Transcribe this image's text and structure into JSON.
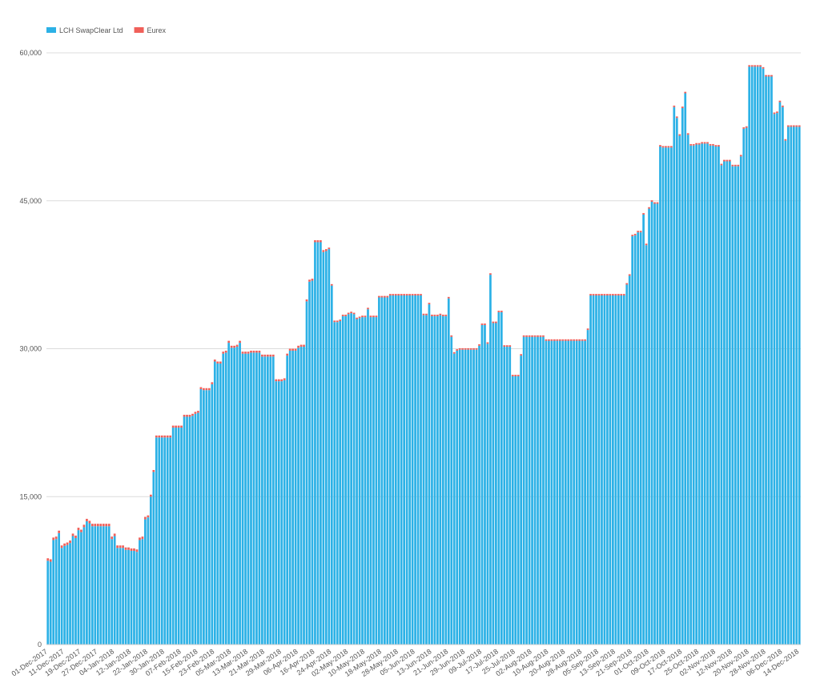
{
  "chart_data": {
    "type": "stacked-bar",
    "legend": "top-left",
    "grid": true,
    "ylim": [
      0,
      60000
    ],
    "yticks": [
      0,
      {
        "value": 15000,
        "label": "15,000"
      },
      {
        "value": 30000,
        "label": "30,000"
      },
      {
        "value": 45000,
        "label": "45,000"
      },
      {
        "value": 60000,
        "label": "60,000"
      }
    ],
    "categories": [
      "01-Dec-2017",
      null,
      null,
      null,
      null,
      null,
      "11-Dec-2017",
      null,
      null,
      null,
      null,
      null,
      "19-Dec-2017",
      null,
      null,
      null,
      null,
      null,
      "27-Dec-2017",
      null,
      null,
      null,
      null,
      null,
      "04-Jan-2018",
      null,
      null,
      null,
      null,
      null,
      "12-Jan-2018",
      null,
      null,
      null,
      null,
      null,
      "22-Jan-2018",
      null,
      null,
      null,
      null,
      null,
      "30-Jan-2018",
      null,
      null,
      null,
      null,
      null,
      "07-Feb-2018",
      null,
      null,
      null,
      null,
      null,
      "15-Feb-2018",
      null,
      null,
      null,
      null,
      null,
      "23-Feb-2018",
      null,
      null,
      null,
      null,
      null,
      "05-Mar-2018",
      null,
      null,
      null,
      null,
      null,
      "13-Mar-2018",
      null,
      null,
      null,
      null,
      null,
      "21-Mar-2018",
      null,
      null,
      null,
      null,
      null,
      "29-Mar-2018",
      null,
      null,
      null,
      null,
      null,
      "06-Apr-2018",
      null,
      null,
      null,
      null,
      null,
      "16-Apr-2018",
      null,
      null,
      null,
      null,
      null,
      "24-Apr-2018",
      null,
      null,
      null,
      null,
      null,
      "02-May-2018",
      null,
      null,
      null,
      null,
      null,
      "10-May-2018",
      null,
      null,
      null,
      null,
      null,
      "18-May-2018",
      null,
      null,
      null,
      null,
      null,
      "28-May-2018",
      null,
      null,
      null,
      null,
      null,
      "05-Jun-2018",
      null,
      null,
      null,
      null,
      null,
      "13-Jun-2018",
      null,
      null,
      null,
      null,
      null,
      "21-Jun-2018",
      null,
      null,
      null,
      null,
      null,
      "29-Jun-2018",
      null,
      null,
      null,
      null,
      null,
      "09-Jul-2018",
      null,
      null,
      null,
      null,
      null,
      "17-Jul-2018",
      null,
      null,
      null,
      null,
      null,
      "25-Jul-2018",
      null,
      null,
      null,
      null,
      null,
      "02-Aug-2018",
      null,
      null,
      null,
      null,
      null,
      "10-Aug-2018",
      null,
      null,
      null,
      null,
      null,
      "20-Aug-2018",
      null,
      null,
      null,
      null,
      null,
      "28-Aug-2018",
      null,
      null,
      null,
      null,
      null,
      "05-Sep-2018",
      null,
      null,
      null,
      null,
      null,
      "13-Sep-2018",
      null,
      null,
      null,
      null,
      null,
      "21-Sep-2018",
      null,
      null,
      null,
      null,
      null,
      "01-Oct-2018",
      null,
      null,
      null,
      null,
      null,
      "09-Oct-2018",
      null,
      null,
      null,
      null,
      null,
      "17-Oct-2018",
      null,
      null,
      null,
      null,
      null,
      "25-Oct-2018",
      null,
      null,
      null,
      null,
      null,
      "02-Nov-2018",
      null,
      null,
      null,
      null,
      null,
      "12-Nov-2018",
      null,
      null,
      null,
      null,
      null,
      "20-Nov-2018",
      null,
      null,
      null,
      null,
      null,
      "28-Nov-2018",
      null,
      null,
      null,
      null,
      null,
      "06-Dec-2018",
      null,
      null,
      null,
      null,
      null,
      "14-Dec-2018"
    ],
    "series": [
      {
        "name": "LCH SwapClear Ltd",
        "color": "#2cb1e6",
        "values": [
          8500,
          8400,
          10600,
          10700,
          11300,
          9800,
          10000,
          10100,
          10300,
          11000,
          10800,
          11600,
          11400,
          11900,
          12500,
          12300,
          12000,
          12000,
          12000,
          12000,
          12000,
          12000,
          12000,
          10700,
          11000,
          9800,
          9800,
          9800,
          9600,
          9600,
          9500,
          9500,
          9400,
          10600,
          10700,
          12700,
          12900,
          15000,
          17500,
          21000,
          21000,
          21000,
          21000,
          21000,
          21000,
          22000,
          22000,
          22000,
          22000,
          23100,
          23100,
          23100,
          23200,
          23400,
          23500,
          25900,
          25800,
          25800,
          25800,
          26400,
          28700,
          28500,
          28500,
          29500,
          29600,
          30600,
          30100,
          30100,
          30200,
          30600,
          29500,
          29500,
          29500,
          29600,
          29600,
          29600,
          29600,
          29200,
          29200,
          29200,
          29200,
          29200,
          26700,
          26700,
          26700,
          26800,
          29300,
          29800,
          29800,
          29800,
          30100,
          30200,
          30200,
          34800,
          36800,
          36900,
          40800,
          40800,
          40800,
          39800,
          39900,
          40100,
          36400,
          32700,
          32700,
          32800,
          33300,
          33300,
          33500,
          33600,
          33500,
          33000,
          33100,
          33200,
          33200,
          34000,
          33200,
          33200,
          33200,
          35200,
          35200,
          35200,
          35200,
          35400,
          35400,
          35400,
          35400,
          35400,
          35400,
          35400,
          35400,
          35400,
          35400,
          35400,
          35400,
          33400,
          33400,
          34500,
          33300,
          33300,
          33300,
          33400,
          33300,
          33300,
          35100,
          31200,
          29500,
          29800,
          29900,
          29900,
          29900,
          29900,
          29900,
          29900,
          29900,
          30300,
          32400,
          32400,
          30500,
          37500,
          32600,
          32600,
          33700,
          33700,
          30200,
          30200,
          30200,
          27200,
          27200,
          27200,
          29300,
          31200,
          31200,
          31200,
          31200,
          31200,
          31200,
          31200,
          31200,
          30800,
          30800,
          30800,
          30800,
          30800,
          30800,
          30800,
          30800,
          30800,
          30800,
          30800,
          30800,
          30800,
          30800,
          30800,
          31900,
          35400,
          35400,
          35400,
          35400,
          35400,
          35400,
          35400,
          35400,
          35400,
          35400,
          35400,
          35400,
          35400,
          36500,
          37400,
          41400,
          41500,
          41800,
          41800,
          43600,
          40500,
          44200,
          44900,
          44700,
          44700,
          50500,
          50400,
          50400,
          50400,
          50400,
          54500,
          53400,
          51600,
          54400,
          55900,
          51700,
          50600,
          50600,
          50700,
          50700,
          50800,
          50800,
          50800,
          50600,
          50600,
          50500,
          50500,
          48600,
          49000,
          49000,
          49000,
          48500,
          48500,
          48500,
          49500,
          52300,
          52400,
          58600,
          58600,
          58600,
          58600,
          58600,
          58400,
          57600,
          57600,
          57600,
          53800,
          53900,
          55000,
          54500,
          51100,
          52500,
          52500,
          52500,
          52500,
          52500
        ]
      },
      {
        "name": "Eurex",
        "color": "#f0605a",
        "values": [
          250,
          250,
          250,
          250,
          250,
          250,
          250,
          250,
          250,
          250,
          250,
          250,
          250,
          250,
          250,
          250,
          250,
          250,
          250,
          250,
          250,
          250,
          250,
          250,
          250,
          250,
          250,
          250,
          250,
          250,
          250,
          250,
          250,
          250,
          250,
          250,
          200,
          200,
          200,
          200,
          200,
          200,
          200,
          200,
          200,
          200,
          200,
          200,
          200,
          200,
          200,
          200,
          200,
          200,
          200,
          200,
          200,
          200,
          200,
          200,
          200,
          200,
          200,
          200,
          200,
          200,
          200,
          200,
          200,
          200,
          200,
          200,
          200,
          200,
          200,
          200,
          200,
          200,
          200,
          200,
          200,
          200,
          200,
          200,
          200,
          200,
          200,
          200,
          200,
          200,
          200,
          200,
          200,
          200,
          200,
          200,
          200,
          200,
          200,
          200,
          200,
          150,
          150,
          150,
          150,
          150,
          150,
          150,
          150,
          150,
          150,
          150,
          150,
          150,
          150,
          150,
          150,
          150,
          150,
          150,
          150,
          150,
          150,
          150,
          150,
          150,
          150,
          150,
          150,
          150,
          150,
          150,
          150,
          150,
          150,
          150,
          150,
          150,
          150,
          150,
          150,
          150,
          150,
          150,
          150,
          150,
          150,
          150,
          150,
          150,
          150,
          150,
          150,
          150,
          150,
          150,
          150,
          150,
          150,
          150,
          150,
          150,
          150,
          150,
          150,
          150,
          150,
          150,
          150,
          150,
          150,
          150,
          150,
          150,
          150,
          150,
          150,
          150,
          150,
          150,
          150,
          150,
          150,
          150,
          150,
          150,
          150,
          150,
          150,
          150,
          150,
          150,
          150,
          150,
          150,
          150,
          150,
          150,
          150,
          150,
          150,
          150,
          150,
          150,
          150,
          150,
          150,
          150,
          150,
          150,
          150,
          150,
          150,
          150,
          150,
          150,
          150,
          150,
          150,
          150,
          150,
          150,
          150,
          150,
          150,
          150,
          150,
          150,
          150,
          150,
          150,
          150,
          150,
          150,
          150,
          150,
          150,
          150,
          150,
          150,
          150,
          150,
          150,
          150,
          150,
          150,
          150,
          150,
          150,
          150,
          150,
          150,
          150,
          150,
          150,
          150,
          150,
          150,
          150,
          150,
          150,
          150,
          150,
          150,
          150,
          150,
          150,
          150,
          150,
          150,
          150
        ]
      }
    ]
  }
}
